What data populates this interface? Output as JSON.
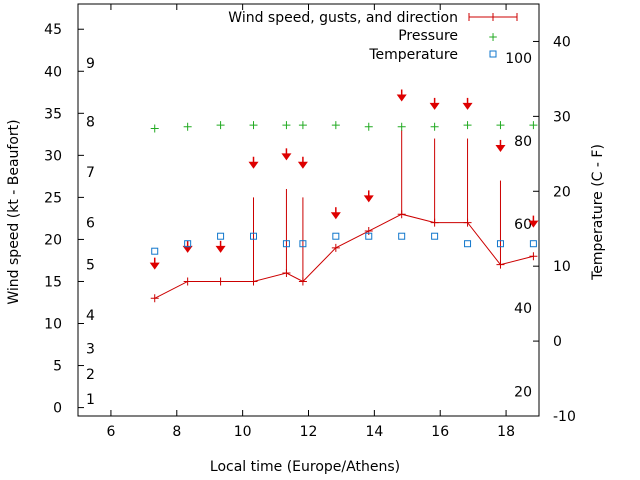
{
  "chart_data": {
    "type": "line",
    "xlabel": "Local time (Europe/Athens)",
    "ylabel_left": "Wind speed (kt - Beaufort)",
    "ylabel_right": "Temperature (C - F)",
    "xlim": [
      5,
      19
    ],
    "x_ticks": [
      "6",
      "8",
      "10",
      "12",
      "14",
      "16",
      "18"
    ],
    "ylim_left": [
      -1,
      48
    ],
    "y_left_ticks": [
      "0",
      "5",
      "10",
      "15",
      "20",
      "25",
      "30",
      "35",
      "40",
      "45"
    ],
    "ylim_right": [
      -10,
      45
    ],
    "y_right_ticks": [
      "-10",
      "0",
      "10",
      "20",
      "30",
      "40"
    ],
    "beaufort_labels": [
      {
        "label": "1",
        "kt": 1
      },
      {
        "label": "2",
        "kt": 4
      },
      {
        "label": "3",
        "kt": 7
      },
      {
        "label": "4",
        "kt": 11
      },
      {
        "label": "5",
        "kt": 17
      },
      {
        "label": "6",
        "kt": 22
      },
      {
        "label": "7",
        "kt": 28
      },
      {
        "label": "8",
        "kt": 34
      },
      {
        "label": "9",
        "kt": 41
      }
    ],
    "fahrenheit_labels": [
      {
        "label": "20",
        "c": -6.7
      },
      {
        "label": "40",
        "c": 4.4
      },
      {
        "label": "60",
        "c": 15.6
      },
      {
        "label": "80",
        "c": 26.7
      },
      {
        "label": "100",
        "c": 37.8
      }
    ],
    "legend_placement": "top-right",
    "colors": {
      "wind": "#cc0000",
      "arrow": "#dd0000",
      "pressure": "#22aa22",
      "temperature": "#1177cc",
      "axis": "#000000"
    },
    "series": [
      {
        "name": "Wind speed, gusts, and direction",
        "x": [
          7.33,
          8.33,
          9.33,
          10.33,
          11.33,
          11.83,
          12.83,
          13.83,
          14.83,
          15.83,
          16.83,
          17.83,
          18.83
        ],
        "speed_kt": [
          13,
          15,
          15,
          15,
          16,
          15,
          19,
          21,
          23,
          22,
          22,
          17,
          18
        ],
        "gust_kt": [
          13,
          15,
          15,
          25,
          26,
          25,
          19,
          21,
          33,
          32,
          32,
          27,
          18
        ],
        "arrow_kt": [
          17,
          19,
          19,
          29,
          30,
          29,
          23,
          25,
          37,
          36,
          36,
          31,
          22
        ]
      },
      {
        "name": "Pressure",
        "x": [
          7.33,
          8.33,
          9.33,
          10.33,
          11.33,
          11.83,
          12.83,
          13.83,
          14.83,
          15.83,
          16.83,
          17.83,
          18.83
        ],
        "y_kt": [
          33.2,
          33.4,
          33.6,
          33.6,
          33.6,
          33.6,
          33.6,
          33.4,
          33.4,
          33.4,
          33.6,
          33.6,
          33.6
        ]
      },
      {
        "name": "Temperature",
        "x": [
          7.33,
          8.33,
          9.33,
          10.33,
          11.33,
          11.83,
          12.83,
          13.83,
          14.83,
          15.83,
          16.83,
          17.83,
          18.83
        ],
        "y_c": [
          12,
          13,
          14,
          14,
          13,
          13,
          14,
          14,
          14,
          14,
          13,
          13,
          13
        ]
      }
    ]
  }
}
